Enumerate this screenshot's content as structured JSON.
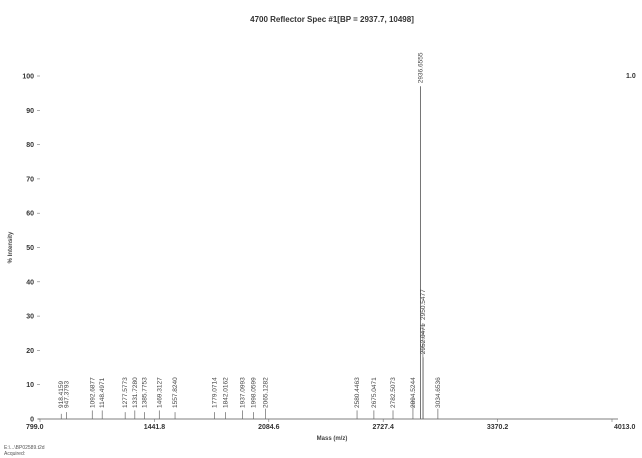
{
  "chart_data": {
    "type": "line",
    "title": "4700 Reflector Spec #1[BP = 2937.7, 10498]",
    "xlabel": "Mass (m/z)",
    "ylabel": "% Intensity",
    "xlim": [
      799.0,
      4013.0
    ],
    "ylim": [
      0,
      100
    ],
    "x_ticks": [
      "799.0",
      "1441.8",
      "2084.6",
      "2727.4",
      "3370.2",
      "4013.0"
    ],
    "y_ticks": [
      "0",
      "10",
      "20",
      "30",
      "40",
      "50",
      "60",
      "70",
      "80",
      "90",
      "100"
    ],
    "right_axis_label": "1.0",
    "grid": false,
    "peaks": [
      {
        "x": 947.3793,
        "y": 2.0,
        "label": "947.3793"
      },
      {
        "x": 918.4159,
        "y": 1.5,
        "label": "918.4159"
      },
      {
        "x": 1092.6877,
        "y": 2.5,
        "label": "1092.6877"
      },
      {
        "x": 1148.4971,
        "y": 2.5,
        "label": "1148.4971"
      },
      {
        "x": 1277.5773,
        "y": 2.0,
        "label": "1277.5773"
      },
      {
        "x": 1331.728,
        "y": 2.5,
        "label": "1331.7280"
      },
      {
        "x": 1385.7753,
        "y": 2.0,
        "label": "1385.7753"
      },
      {
        "x": 1469.3127,
        "y": 2.5,
        "label": "1469.3127"
      },
      {
        "x": 1557.824,
        "y": 2.0,
        "label": "1557.8240"
      },
      {
        "x": 1779.0714,
        "y": 2.0,
        "label": "1779.0714"
      },
      {
        "x": 1842.0162,
        "y": 2.0,
        "label": "1842.0162"
      },
      {
        "x": 1937.0993,
        "y": 2.5,
        "label": "1937.0993"
      },
      {
        "x": 1998.0599,
        "y": 2.0,
        "label": "1998.0599"
      },
      {
        "x": 2065.1282,
        "y": 3.0,
        "label": "2065.1282"
      },
      {
        "x": 2580.4463,
        "y": 2.5,
        "label": "2580.4463"
      },
      {
        "x": 2675.0471,
        "y": 2.5,
        "label": "2675.0471"
      },
      {
        "x": 2782.5073,
        "y": 2.5,
        "label": "2782.5073"
      },
      {
        "x": 2894.5244,
        "y": 6.0,
        "label": "2894.5244"
      },
      {
        "x": 2936.6555,
        "y": 97.0,
        "label": "2936.6555"
      },
      {
        "x": 2950.5477,
        "y": 28.0,
        "label": "2950.5477"
      },
      {
        "x": 2952.0471,
        "y": 18.0,
        "label": "2952.0471"
      },
      {
        "x": 3034.6536,
        "y": 3.0,
        "label": "3034.6536"
      }
    ]
  },
  "footer": {
    "line1": "E:\\...\\BP02589.t2d",
    "line2": "Acquired:"
  }
}
